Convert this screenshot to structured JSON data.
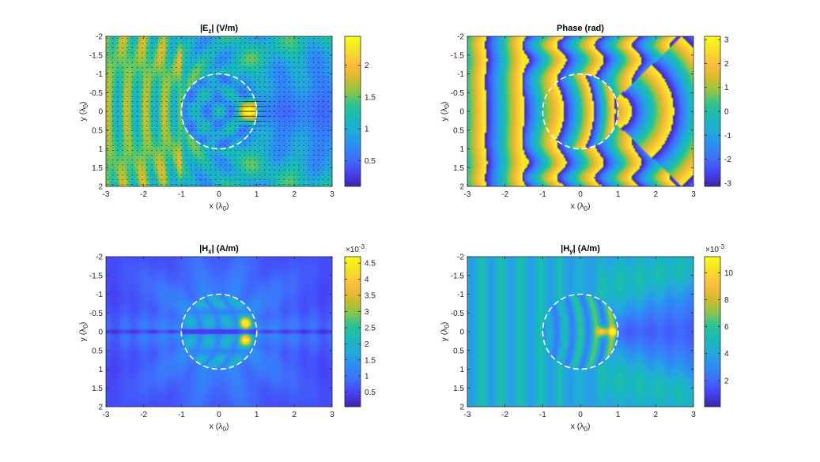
{
  "figure": {
    "background": "#ffffff"
  },
  "colormap": [
    "#3e26a8",
    "#4743f8",
    "#3e72fd",
    "#2d8ef4",
    "#22aadb",
    "#17bab8",
    "#2ec492",
    "#8fc642",
    "#d9ba2c",
    "#febd3d",
    "#f5df25",
    "#f9fb15"
  ],
  "chart_data": [
    {
      "type": "heatmap",
      "id": "ez",
      "title_main": "|E",
      "title_sub": "z",
      "title_unit": "| (V/m)",
      "xlabel": "x (λ",
      "xlabel_sub": "0",
      "xlabel_end": ")",
      "ylabel": "y (λ",
      "ylabel_sub": "0",
      "ylabel_end": ")",
      "xlim": [
        -3,
        3
      ],
      "ylim": [
        -2,
        2
      ],
      "y_reversed": true,
      "xticks": [
        "-3",
        "-2",
        "-1",
        "0",
        "1",
        "2",
        "3"
      ],
      "yticks": [
        "-2",
        "-1.5",
        "-1",
        "-0.5",
        "0",
        "0.5",
        "1",
        "1.5",
        "2"
      ],
      "clim": [
        0.1,
        2.45
      ],
      "cticks": [
        {
          "v": 0.5,
          "label": "0.5"
        },
        {
          "v": 1,
          "label": "1"
        },
        {
          "v": 1.5,
          "label": "1.5"
        },
        {
          "v": 2,
          "label": "2"
        }
      ],
      "exponent": "",
      "field": "ez",
      "quiver": true,
      "circle": {
        "cx": 0,
        "cy": 0,
        "r": 1
      }
    },
    {
      "type": "heatmap",
      "id": "phase",
      "title_main": "Phase (rad)",
      "title_sub": "",
      "title_unit": "",
      "xlabel": "x (λ",
      "xlabel_sub": "0",
      "xlabel_end": ")",
      "ylabel": "y (λ",
      "ylabel_sub": "0",
      "ylabel_end": ")",
      "xlim": [
        -3,
        3
      ],
      "ylim": [
        -2,
        2
      ],
      "y_reversed": true,
      "xticks": [
        "-3",
        "-2",
        "-1",
        "0",
        "1",
        "2",
        "3"
      ],
      "yticks": [
        "-2",
        "-1.5",
        "-1",
        "-0.5",
        "0",
        "0.5",
        "1",
        "1.5",
        "2"
      ],
      "clim": [
        -3.14,
        3.14
      ],
      "cticks": [
        {
          "v": -3,
          "label": "-3"
        },
        {
          "v": -2,
          "label": "-2"
        },
        {
          "v": -1,
          "label": "-1"
        },
        {
          "v": 0,
          "label": "0"
        },
        {
          "v": 1,
          "label": "1"
        },
        {
          "v": 2,
          "label": "2"
        },
        {
          "v": 3,
          "label": "3"
        }
      ],
      "exponent": "",
      "field": "phase",
      "quiver": false,
      "circle": {
        "cx": 0,
        "cy": 0,
        "r": 1
      }
    },
    {
      "type": "heatmap",
      "id": "hx",
      "title_main": "|H",
      "title_sub": "x",
      "title_unit": "| (A/m)",
      "xlabel": "x (λ",
      "xlabel_sub": "0",
      "xlabel_end": ")",
      "ylabel": "y (λ",
      "ylabel_sub": "0",
      "ylabel_end": ")",
      "xlim": [
        -3,
        3
      ],
      "ylim": [
        -2,
        2
      ],
      "y_reversed": true,
      "xticks": [
        "-3",
        "-2",
        "-1",
        "0",
        "1",
        "2",
        "3"
      ],
      "yticks": [
        "-2",
        "-1.5",
        "-1",
        "-0.5",
        "0",
        "0.5",
        "1",
        "1.5",
        "2"
      ],
      "clim": [
        0.05,
        4.7
      ],
      "cticks": [
        {
          "v": 0.5,
          "label": "0.5"
        },
        {
          "v": 1,
          "label": "1"
        },
        {
          "v": 1.5,
          "label": "1.5"
        },
        {
          "v": 2,
          "label": "2"
        },
        {
          "v": 2.5,
          "label": "2.5"
        },
        {
          "v": 3,
          "label": "3"
        },
        {
          "v": 3.5,
          "label": "3.5"
        },
        {
          "v": 4,
          "label": "4"
        },
        {
          "v": 4.5,
          "label": "4.5"
        }
      ],
      "exponent": "×10",
      "exponent_power": "-3",
      "field": "hx",
      "quiver": false,
      "circle": {
        "cx": 0,
        "cy": 0,
        "r": 1
      }
    },
    {
      "type": "heatmap",
      "id": "hy",
      "title_main": "|H",
      "title_sub": "y",
      "title_unit": "| (A/m)",
      "xlabel": "x (λ",
      "xlabel_sub": "0",
      "xlabel_end": ")",
      "ylabel": "y (λ",
      "ylabel_sub": "0",
      "ylabel_end": ")",
      "xlim": [
        -3,
        3
      ],
      "ylim": [
        -2,
        2
      ],
      "y_reversed": true,
      "xticks": [
        "-3",
        "-2",
        "-1",
        "0",
        "1",
        "2",
        "3"
      ],
      "yticks": [
        "-2",
        "-1.5",
        "-1",
        "-0.5",
        "0",
        "0.5",
        "1",
        "1.5",
        "2"
      ],
      "clim": [
        0.05,
        11.2
      ],
      "cticks": [
        {
          "v": 2,
          "label": "2"
        },
        {
          "v": 4,
          "label": "4"
        },
        {
          "v": 6,
          "label": "6"
        },
        {
          "v": 8,
          "label": "8"
        },
        {
          "v": 10,
          "label": "10"
        }
      ],
      "exponent": "×10",
      "exponent_power": "-3",
      "field": "hy",
      "quiver": false,
      "circle": {
        "cx": 0,
        "cy": 0,
        "r": 1
      }
    }
  ]
}
